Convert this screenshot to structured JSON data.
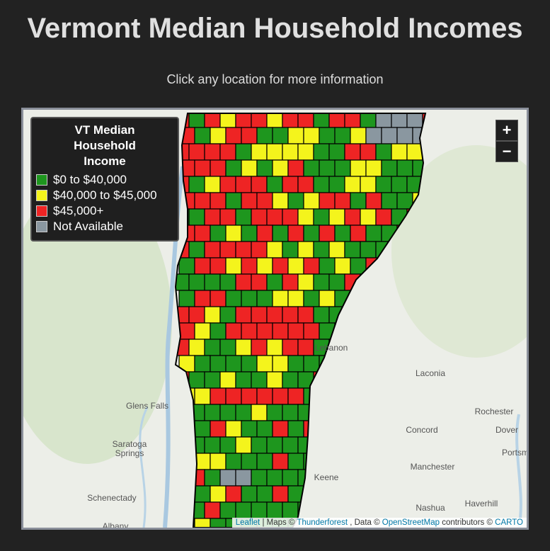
{
  "header": {
    "title": "Vermont Median Household Incomes",
    "subtitle": "Click any location for more information"
  },
  "legend": {
    "title": "VT Median Household Income",
    "items": [
      {
        "label": "$0 to $40,000",
        "color": "#1e961e"
      },
      {
        "label": "$40,000 to $45,000",
        "color": "#f4f41c"
      },
      {
        "label": "$45,000+",
        "color": "#ee2424"
      },
      {
        "label": "Not Available",
        "color": "#8a97a0"
      }
    ]
  },
  "zoom": {
    "in": "+",
    "out": "−"
  },
  "places": [
    "Glens Falls",
    "Saratoga Springs",
    "Schenectady",
    "Albany",
    "Lebanon",
    "Laconia",
    "Rochester",
    "Dover",
    "Concord",
    "Portsm",
    "Manchester",
    "Keene",
    "Nashua",
    "Haverhill"
  ],
  "attribution": [
    {
      "text": "Leaflet",
      "link": true
    },
    {
      "text": "| Maps ©",
      "link": false
    },
    {
      "text": "Thunderforest",
      "link": true
    },
    {
      "text": ", Data ©",
      "link": false
    },
    {
      "text": "OpenStreetMap",
      "link": true
    },
    {
      "text": "contributors ©",
      "link": false
    },
    {
      "text": "CARTO",
      "link": true
    }
  ]
}
